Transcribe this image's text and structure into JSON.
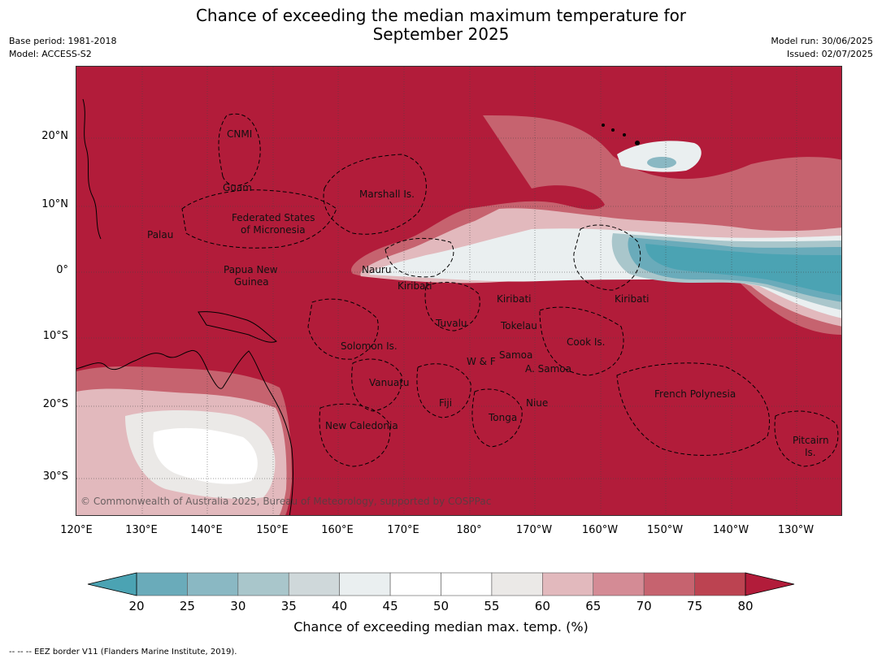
{
  "title_line1": "Chance of exceeding the median maximum temperature for",
  "title_line2": "September 2025",
  "base_period": "Base period: 1981-2018",
  "model": "Model: ACCESS-S2",
  "model_run": "Model run: 30/06/2025",
  "issued": "Issued: 02/07/2025",
  "lat_labels": [
    "20°N",
    "10°N",
    "0°",
    "10°S",
    "20°S",
    "30°S"
  ],
  "lon_labels": [
    "120°E",
    "130°E",
    "140°E",
    "150°E",
    "160°E",
    "170°E",
    "180°",
    "170°W",
    "160°W",
    "150°W",
    "140°W",
    "130°W"
  ],
  "regions": {
    "cnmi": "CNMI",
    "guam": "Guam",
    "marshall": "Marshall Is.",
    "fsm_line1": "Federated States",
    "fsm_line2": "of Micronesia",
    "palau": "Palau",
    "png_line1": "Papua New",
    "png_line2": "Guinea",
    "nauru": "Nauru",
    "kiribati_w": "Kiribati",
    "kiribati_c": "Kiribati",
    "kiribati_e": "Kiribati",
    "tuvalu": "Tuvalu",
    "tokelau": "Tokelau",
    "solomon": "Solomon Is.",
    "cook": "Cook Is.",
    "samoa": "Samoa",
    "wf": "W & F",
    "asamoa": "A. Samoa",
    "vanuatu": "Vanuatu",
    "fiji": "Fiji",
    "niue": "Niue",
    "french_polynesia": "French Polynesia",
    "tonga": "Tonga",
    "new_caledonia": "New Caledonia",
    "pitcairn_line1": "Pitcairn",
    "pitcairn_line2": "Is."
  },
  "copyright": "© Commonwealth of Australia 2025, Bureau of Meteorology, supported by COSPPac",
  "colorbar": {
    "label": "Chance of exceeding median max. temp. (%)",
    "ticks": [
      "20",
      "25",
      "30",
      "35",
      "40",
      "45",
      "50",
      "55",
      "60",
      "65",
      "70",
      "75",
      "80"
    ],
    "colors": [
      "#4ba3b3",
      "#6aabba",
      "#8ab8c3",
      "#a9c6cb",
      "#cfd8da",
      "#eaeff0",
      "#ffffff",
      "#ffffff",
      "#ebe9e7",
      "#e2b9bd",
      "#d48b95",
      "#c6636f",
      "#bc4351",
      "#b21c3a"
    ]
  },
  "footnote": "--  --  -- EEZ border V11 (Flanders Marine Institute, 2019)."
}
